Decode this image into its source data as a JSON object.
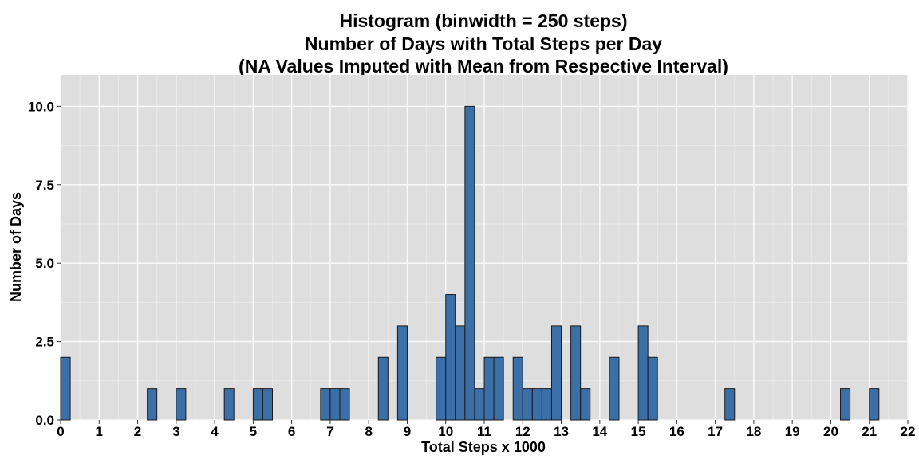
{
  "chart_data": {
    "type": "bar",
    "title_lines": [
      "Histogram (binwidth = 250 steps)",
      "Number of Days with Total Steps per Day",
      "(NA Values Imputed with Mean from Respective Interval)"
    ],
    "xlabel": "Total Steps x 1000",
    "ylabel": "Number of Days",
    "binwidth": 0.25,
    "xlim": [
      0,
      22
    ],
    "ylim": [
      0,
      11
    ],
    "x_ticks": [
      "0",
      "1",
      "2",
      "3",
      "4",
      "5",
      "6",
      "7",
      "8",
      "9",
      "10",
      "11",
      "12",
      "13",
      "14",
      "15",
      "16",
      "17",
      "18",
      "19",
      "20",
      "21",
      "22"
    ],
    "y_ticks": [
      "0.0",
      "2.5",
      "5.0",
      "7.5",
      "10.0"
    ],
    "grid": true,
    "bins": [
      {
        "x": 0.0,
        "count": 2
      },
      {
        "x": 2.25,
        "count": 1
      },
      {
        "x": 3.0,
        "count": 1
      },
      {
        "x": 4.25,
        "count": 1
      },
      {
        "x": 5.0,
        "count": 1
      },
      {
        "x": 5.25,
        "count": 1
      },
      {
        "x": 6.75,
        "count": 1
      },
      {
        "x": 7.0,
        "count": 1
      },
      {
        "x": 7.25,
        "count": 1
      },
      {
        "x": 8.25,
        "count": 2
      },
      {
        "x": 8.75,
        "count": 3
      },
      {
        "x": 9.75,
        "count": 2
      },
      {
        "x": 10.0,
        "count": 4
      },
      {
        "x": 10.25,
        "count": 3
      },
      {
        "x": 10.5,
        "count": 10
      },
      {
        "x": 10.75,
        "count": 1
      },
      {
        "x": 11.0,
        "count": 2
      },
      {
        "x": 11.25,
        "count": 2
      },
      {
        "x": 11.75,
        "count": 2
      },
      {
        "x": 12.0,
        "count": 1
      },
      {
        "x": 12.25,
        "count": 1
      },
      {
        "x": 12.5,
        "count": 1
      },
      {
        "x": 12.75,
        "count": 3
      },
      {
        "x": 13.25,
        "count": 3
      },
      {
        "x": 13.5,
        "count": 1
      },
      {
        "x": 14.25,
        "count": 2
      },
      {
        "x": 15.0,
        "count": 3
      },
      {
        "x": 15.25,
        "count": 2
      },
      {
        "x": 17.25,
        "count": 1
      },
      {
        "x": 20.25,
        "count": 1
      },
      {
        "x": 21.0,
        "count": 1
      }
    ],
    "colors": {
      "bar_fill": "#3A6FA8",
      "bar_stroke": "#1a1a1a",
      "panel_bg": "#DEDEDE",
      "grid_major": "#F7F7F7",
      "grid_minor": "#E8E8E8"
    }
  }
}
